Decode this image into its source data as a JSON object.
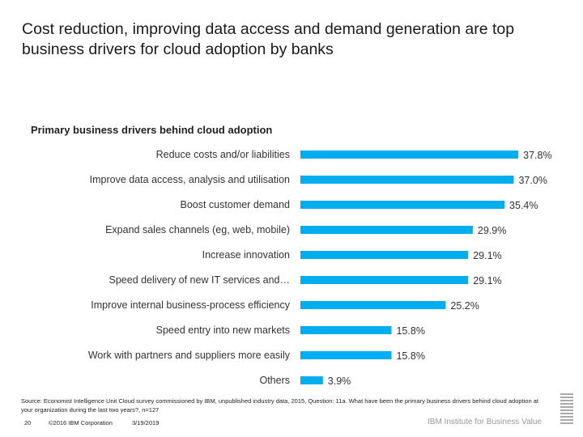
{
  "title": "Cost reduction, improving data access and demand generation are top business drivers for cloud adoption by banks",
  "chart_data": {
    "type": "bar",
    "orientation": "horizontal",
    "title": "Primary business drivers behind cloud adoption",
    "categories": [
      "Reduce costs and/or liabilities",
      "Improve data access, analysis and utilisation",
      "Boost customer demand",
      "Expand sales channels (eg, web, mobile)",
      "Increase innovation",
      "Speed delivery of new IT services and…",
      "Improve internal business-process efficiency",
      "Speed entry into new markets",
      "Work with partners and suppliers more easily",
      "Others"
    ],
    "values": [
      37.8,
      37.0,
      35.4,
      29.9,
      29.1,
      29.1,
      25.2,
      15.8,
      15.8,
      3.9
    ],
    "labels": [
      "37.8%",
      "37.0%",
      "35.4%",
      "29.9%",
      "29.1%",
      "29.1%",
      "25.2%",
      "15.8%",
      "15.8%",
      "3.9%"
    ],
    "unit": "%",
    "color": "#00AEEF",
    "grid": false
  },
  "source": "Source: Economist Intelligence Unit Cloud survey commissioned by IBM, unpublished industry data, 2015, Question: 11a. What have been the primary business drivers behind cloud adoption at your organization during the last two years?, n=127",
  "footer": {
    "page": "20",
    "copyright": "©2016 IBM Corporation",
    "date": "3/19/2019",
    "brand": "IBM Institute for Business Value"
  }
}
